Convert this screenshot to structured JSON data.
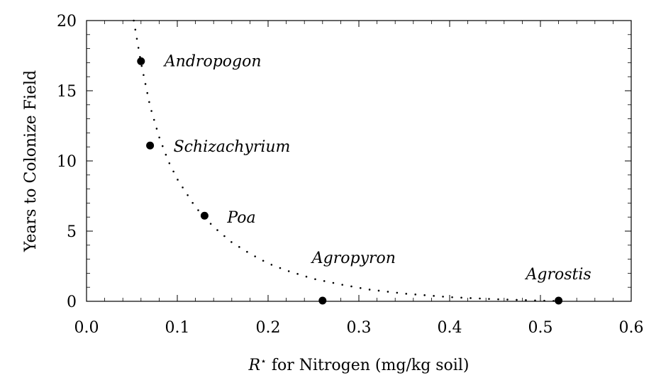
{
  "chart_data": {
    "type": "scatter",
    "xlabel": "R* for Nitrogen (mg/kg soil)",
    "xlabel_parts": {
      "symbol": "R",
      "superscript": "⋆",
      "rest": " for Nitrogen (mg/kg soil)"
    },
    "ylabel": "Years to Colonize Field",
    "xlim": [
      0.0,
      0.6
    ],
    "ylim": [
      0,
      20
    ],
    "x_ticks": [
      "0.0",
      "0.1",
      "0.2",
      "0.3",
      "0.4",
      "0.5",
      "0.6"
    ],
    "y_ticks": [
      "0",
      "5",
      "10",
      "15",
      "20"
    ],
    "grid": false,
    "points": [
      {
        "label": "Andropogon",
        "x": 0.06,
        "y": 17.1
      },
      {
        "label": "Schizachyrium",
        "x": 0.07,
        "y": 11.1
      },
      {
        "label": "Poa",
        "x": 0.13,
        "y": 6.1
      },
      {
        "label": "Agropyron",
        "x": 0.26,
        "y": 0.05
      },
      {
        "label": "Agrostis",
        "x": 0.52,
        "y": 0.05
      }
    ],
    "fit_curve": {
      "style": "dotted",
      "x": [
        0.052,
        0.06,
        0.07,
        0.08,
        0.09,
        0.1,
        0.12,
        0.14,
        0.16,
        0.18,
        0.2,
        0.22,
        0.25,
        0.28,
        0.31,
        0.35,
        0.4,
        0.45,
        0.5,
        0.52
      ],
      "y": [
        20,
        17.0,
        13.9,
        11.7,
        10.0,
        8.7,
        6.7,
        5.3,
        4.2,
        3.4,
        2.7,
        2.2,
        1.6,
        1.2,
        0.85,
        0.55,
        0.3,
        0.15,
        0.05,
        0.02
      ]
    }
  }
}
